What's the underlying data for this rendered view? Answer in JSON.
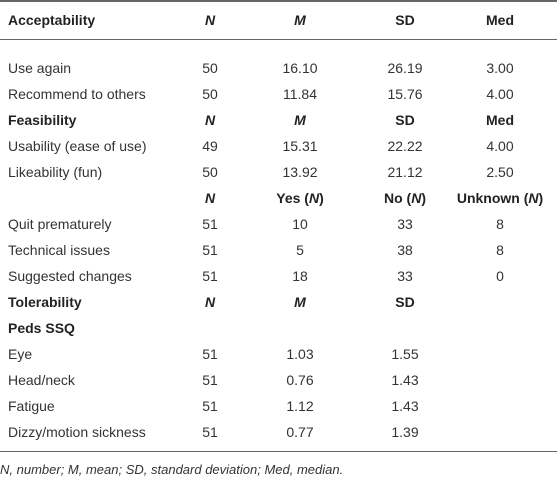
{
  "table": {
    "rows": [
      {
        "bold": true,
        "label": "Acceptability",
        "cells": [
          [
            [
              "",
              "N"
            ]
          ],
          [
            [
              "",
              "M"
            ]
          ],
          "SD",
          "Med"
        ]
      },
      {
        "label": "Use again",
        "cells": [
          "50",
          "16.10",
          "26.19",
          "3.00"
        ]
      },
      {
        "label": "Recommend to others",
        "cells": [
          "50",
          "11.84",
          "15.76",
          "4.00"
        ]
      },
      {
        "bold": true,
        "label": "Feasibility",
        "cells": [
          [
            [
              "",
              "N"
            ]
          ],
          [
            [
              "",
              "M"
            ]
          ],
          "SD",
          "Med"
        ]
      },
      {
        "label": "Usability (ease of use)",
        "cells": [
          "49",
          "15.31",
          "22.22",
          "4.00"
        ]
      },
      {
        "label": "Likeability (fun)",
        "cells": [
          "50",
          "13.92",
          "21.12",
          "2.50"
        ]
      },
      {
        "bold": true,
        "cells": [
          [
            [
              "",
              "N"
            ]
          ],
          [
            [
              "Yes (",
              "N"
            ],
            ")"
          ],
          [
            [
              "No (",
              "N"
            ],
            ")"
          ],
          [
            [
              "Unknown (",
              "N"
            ],
            ")"
          ]
        ]
      },
      {
        "label": "Quit prematurely",
        "cells": [
          "51",
          "10",
          "33",
          "8"
        ]
      },
      {
        "label": "Technical issues",
        "cells": [
          "51",
          "5",
          "38",
          "8"
        ]
      },
      {
        "label": "Suggested changes",
        "cells": [
          "51",
          "18",
          "33",
          "0"
        ]
      },
      {
        "bold": true,
        "label": "Tolerability",
        "cells": [
          [
            [
              "",
              "N"
            ]
          ],
          [
            [
              "",
              "M"
            ]
          ],
          "SD"
        ]
      },
      {
        "bold": true,
        "label": "Peds SSQ"
      },
      {
        "label": "Eye",
        "cells": [
          "51",
          "1.03",
          "1.55"
        ]
      },
      {
        "label": "Head/neck",
        "cells": [
          "51",
          "0.76",
          "1.43"
        ]
      },
      {
        "label": "Fatigue",
        "cells": [
          "51",
          "1.12",
          "1.43"
        ]
      },
      {
        "label": "Dizzy/motion sickness",
        "cells": [
          "51",
          "0.77",
          "1.39"
        ]
      }
    ]
  },
  "footnote": "N, number; M, mean; SD, standard deviation; Med, median."
}
